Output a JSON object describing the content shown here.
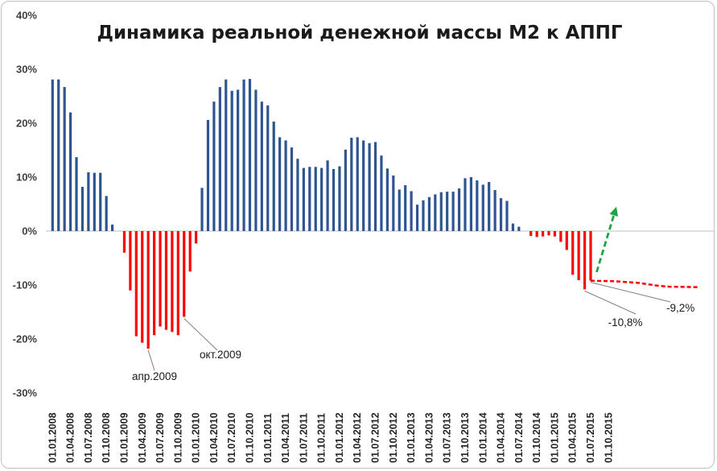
{
  "chart_data": {
    "type": "bar",
    "title": "Динамика реальной денежной массы М2 к АППГ",
    "xlabel": "",
    "ylabel": "",
    "ylim": [
      -30,
      40
    ],
    "yticks": [
      40,
      30,
      20,
      10,
      0,
      -10,
      -20,
      -30
    ],
    "ytick_labels": [
      "40%",
      "30%",
      "20%",
      "10%",
      "0%",
      "-10%",
      "-20%",
      "-30%"
    ],
    "grid": false,
    "legend": "none",
    "colors": {
      "positive": "#2e5591",
      "negative": "#ff0000",
      "up_arrow": "#1aa640",
      "forecast": "#ff0000"
    },
    "x_tick_labels": [
      "01.01.2008",
      "01.04.2008",
      "01.07.2008",
      "01.10.2008",
      "01.01.2009",
      "01.04.2009",
      "01.07.2009",
      "01.10.2009",
      "01.01.2010",
      "01.04.2010",
      "01.07.2010",
      "01.10.2010",
      "01.01.2011",
      "01.04.2011",
      "01.07.2011",
      "01.10.2011",
      "01.01.2012",
      "01.04.2012",
      "01.07.2012",
      "01.10.2012",
      "01.01.2013",
      "01.04.2013",
      "01.07.2013",
      "01.10.2013",
      "01.01.2014",
      "01.04.2014",
      "01.07.2014",
      "01.10.2014",
      "01.01.2015",
      "01.04.2015",
      "01.07.2015",
      "01.10.2015"
    ],
    "values": [
      28.1,
      28.1,
      26.7,
      22.0,
      13.7,
      8.2,
      10.9,
      10.8,
      10.8,
      6.5,
      1.2,
      0.0,
      -4.0,
      -11.0,
      -19.5,
      -20.7,
      -21.8,
      -19.3,
      -17.7,
      -18.3,
      -18.7,
      -19.3,
      -15.9,
      -7.5,
      -2.3,
      8.0,
      20.6,
      24.0,
      26.7,
      28.1,
      26.0,
      26.2,
      28.1,
      28.2,
      26.2,
      24.0,
      23.3,
      20.3,
      17.4,
      16.8,
      15.5,
      13.4,
      11.7,
      11.9,
      11.9,
      11.7,
      13.1,
      11.5,
      12.0,
      15.1,
      17.3,
      17.4,
      16.8,
      16.3,
      16.5,
      14.0,
      11.6,
      10.3,
      7.7,
      8.5,
      7.4,
      4.9,
      5.7,
      6.3,
      6.8,
      7.2,
      7.3,
      7.3,
      7.9,
      9.8,
      10.0,
      9.4,
      8.6,
      9.1,
      7.6,
      6.1,
      5.6,
      1.4,
      0.8,
      0.0,
      -0.9,
      -1.1,
      -1.0,
      -0.8,
      -1.0,
      -2.0,
      -3.5,
      -8.1,
      -9.1,
      -10.8,
      -9.2
    ],
    "forecast_line": {
      "x_index": [
        90,
        94,
        98,
        101,
        103,
        108
      ],
      "values": [
        -9.2,
        -9.3,
        -9.6,
        -10.1,
        -10.3,
        -10.4
      ]
    },
    "growth_arrow": {
      "from": {
        "x_index": 91,
        "value": -7.6
      },
      "to": {
        "x_index": 94.3,
        "value": 4.5
      }
    },
    "annotations": [
      {
        "text": "апр.2009",
        "x_index": 16,
        "value": -21.8
      },
      {
        "text": "окт.2009",
        "x_index": 22,
        "value": -15.9
      },
      {
        "text": "-10,8%",
        "x_index": 89,
        "value": -10.8
      },
      {
        "text": "-9,2%",
        "x_index": 90,
        "value": -9.2
      }
    ]
  }
}
